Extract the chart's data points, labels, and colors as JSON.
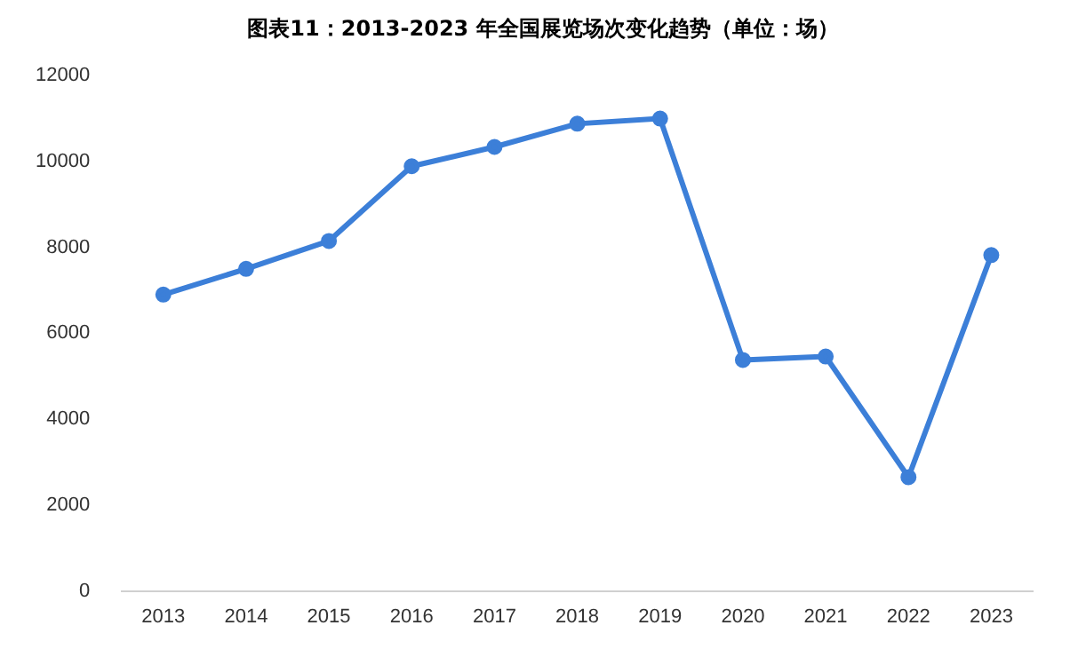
{
  "chart_data": {
    "type": "line",
    "title": "图表11：2013-2023 年全国展览场次变化趋势（单位：场）",
    "categories": [
      "2013",
      "2014",
      "2015",
      "2016",
      "2017",
      "2018",
      "2019",
      "2020",
      "2021",
      "2022",
      "2023"
    ],
    "series": [
      {
        "color": "#3c7fd8",
        "values": [
          6900,
          7500,
          8150,
          9890,
          10340,
          10880,
          11000,
          5380,
          5460,
          2650,
          7820
        ]
      }
    ],
    "ylim": [
      0,
      12000
    ],
    "yticks": [
      0,
      2000,
      4000,
      6000,
      8000,
      10000,
      12000
    ],
    "grid": false,
    "legend": false,
    "marker": "circle",
    "line_style": "solid"
  }
}
